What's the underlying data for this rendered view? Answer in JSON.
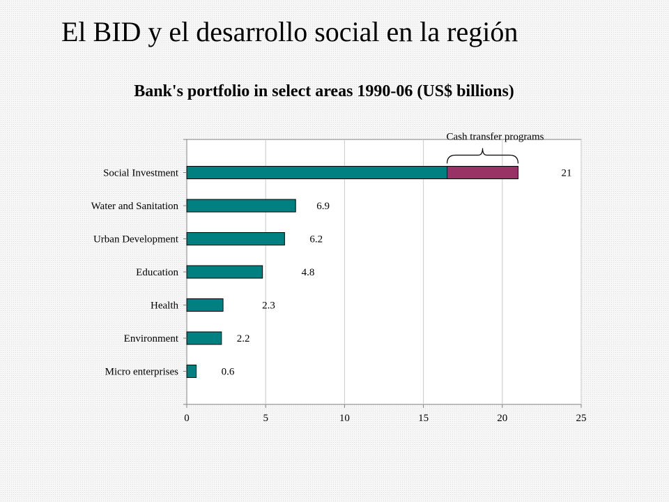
{
  "slide_title": "El BID y el desarrollo social en la región",
  "chart_data": {
    "type": "bar",
    "orientation": "horizontal",
    "title": "Bank's portfolio in select areas 1990-06 (US$ billions)",
    "categories": [
      "Social Investment",
      "Water and Sanitation",
      "Urban Development",
      "Education",
      "Health",
      "Environment",
      "Micro enterprises"
    ],
    "values": [
      21,
      6.9,
      6.2,
      4.8,
      2.3,
      2.2,
      0.6
    ],
    "data_labels": [
      "21",
      "6.9",
      "6.2",
      "4.8",
      "2.3",
      "2.2",
      "0.6"
    ],
    "highlight": {
      "category": "Social Investment",
      "from": 16.5,
      "to": 21,
      "label": "Cash transfer programs",
      "color": "#993366"
    },
    "xlim": [
      0,
      25
    ],
    "xticks": [
      0,
      5,
      10,
      15,
      20,
      25
    ],
    "grid": true,
    "bar_color": "#008080",
    "legend": "none"
  }
}
